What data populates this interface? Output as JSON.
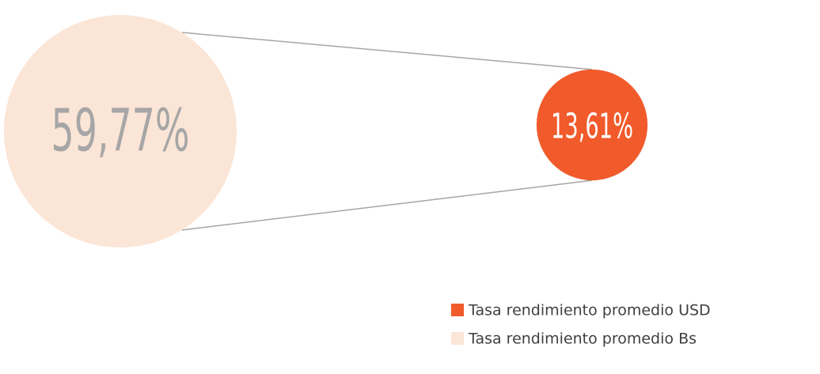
{
  "chart_data": {
    "type": "bubble",
    "series": [
      {
        "name": "Tasa rendimiento promedio USD",
        "color": "#f15a2b",
        "values": [
          13.61
        ],
        "value_labels": [
          "13,61%"
        ]
      },
      {
        "name": "Tasa rendimiento promedio Bs",
        "color": "#fbe5d6",
        "values": [
          59.77
        ],
        "value_labels": [
          "59,77%"
        ]
      }
    ]
  }
}
